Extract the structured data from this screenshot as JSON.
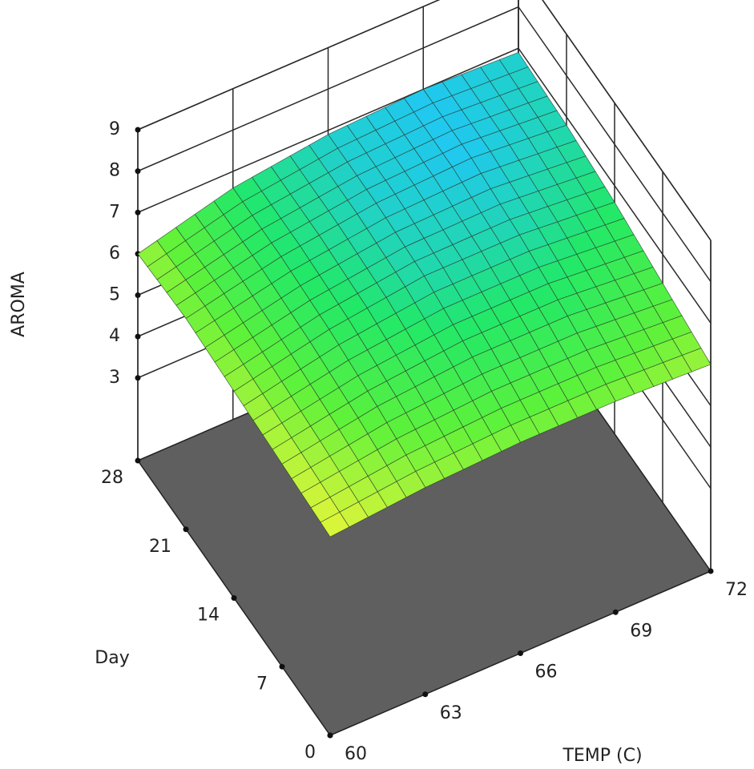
{
  "chart_data": {
    "type": "surface",
    "xlabel": "TEMP (C)",
    "ylabel": "Day",
    "zlabel": "AROMA",
    "x": [
      60,
      63,
      66,
      69,
      72
    ],
    "y": [
      0,
      7,
      14,
      21,
      28
    ],
    "z": [
      [
        5.8,
        6.0,
        6.1,
        6.1,
        6.0
      ],
      [
        5.9,
        6.3,
        6.5,
        6.5,
        6.3
      ],
      [
        6.0,
        6.5,
        6.8,
        6.8,
        6.6
      ],
      [
        6.1,
        6.6,
        6.9,
        7.0,
        6.8
      ],
      [
        6.0,
        6.6,
        6.9,
        7.0,
        6.9
      ]
    ],
    "xlim": [
      60,
      72
    ],
    "ylim": [
      0,
      28
    ],
    "zlim": [
      1,
      9
    ],
    "xticks": [
      60,
      63,
      66,
      69,
      72
    ],
    "yticks": [
      0,
      7,
      14,
      21,
      28
    ],
    "zticks": [
      3,
      4,
      5,
      6,
      7,
      8,
      9
    ],
    "colormap": [
      "#e4f53a",
      "#5ef23a",
      "#22e868",
      "#20c8f0"
    ],
    "floor_color": "#5f5f5f",
    "grid": true
  }
}
